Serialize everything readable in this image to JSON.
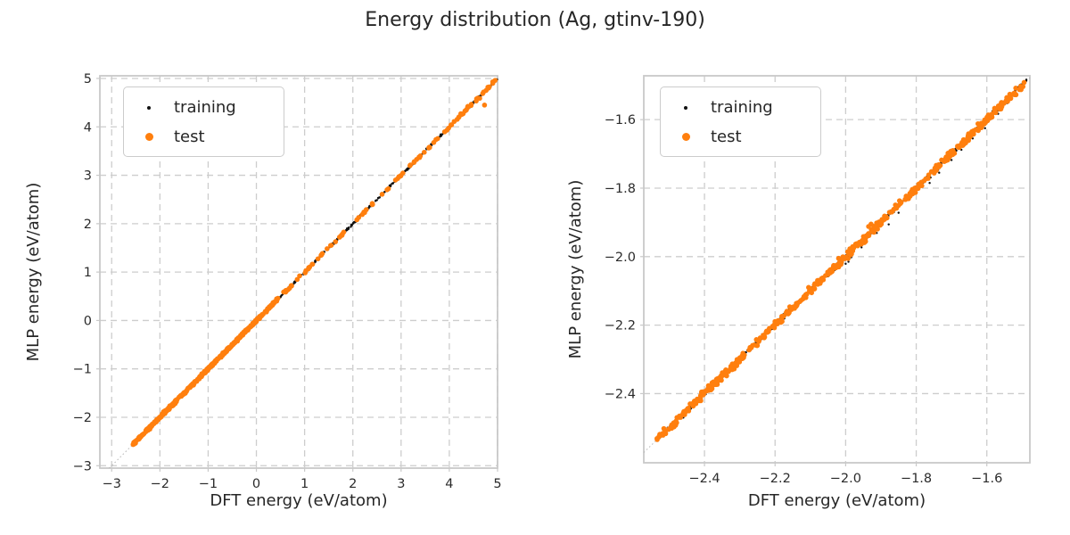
{
  "figure": {
    "title": "Energy distribution (Ag, gtinv-190)",
    "background_color": "#ffffff",
    "text_color": "#262626",
    "grid_color": "#cdcdcd",
    "spine_color": "#c9c9c9"
  },
  "legend": {
    "position": "upper left",
    "items": [
      {
        "label": "training",
        "marker": "small-black-dot",
        "color": "#111111"
      },
      {
        "label": "test",
        "marker": "orange-dot",
        "color": "#ff7f0e"
      }
    ]
  },
  "chart_data": [
    {
      "id": "left",
      "type": "scatter",
      "xlabel": "DFT energy (eV/atom)",
      "ylabel": "MLP energy (eV/atom)",
      "xlim": [
        -3.245,
        5.0
      ],
      "ylim": [
        -3.05,
        5.055
      ],
      "grid": "dashed",
      "xticks": {
        "values": [
          -3,
          -2,
          -1,
          0,
          1,
          2,
          3,
          4,
          5
        ],
        "labels": [
          "−3",
          "−2",
          "−1",
          "0",
          "1",
          "2",
          "3",
          "4",
          "5"
        ]
      },
      "yticks": {
        "values": [
          -3,
          -2,
          -1,
          0,
          1,
          2,
          3,
          4,
          5
        ],
        "labels": [
          "−3",
          "−2",
          "−1",
          "0",
          "1",
          "2",
          "3",
          "4",
          "5"
        ]
      },
      "ref_line": {
        "equation": "y = x",
        "v0": -3.05,
        "v1": 5.0,
        "style": "dotted",
        "color": "#b5b5b5"
      },
      "series": [
        {
          "name": "training",
          "color": "#111111",
          "marker_radius": 1.2,
          "bands": [
            {
              "x0": -2.56,
              "x1": 4.96,
              "n": 650,
              "noise": 0.012,
              "seed": 101
            }
          ],
          "points": [
            [
              4.97,
              4.96
            ],
            [
              4.99,
              4.98
            ],
            [
              4.9,
              4.91
            ],
            [
              4.84,
              4.85
            ],
            [
              4.78,
              4.77
            ],
            [
              4.7,
              4.71
            ],
            [
              4.6,
              4.61
            ],
            [
              4.5,
              4.49
            ]
          ]
        },
        {
          "name": "test",
          "color": "#ff7f0e",
          "marker_radius": 2.8,
          "bands": [
            {
              "x0": -2.56,
              "x1": 0.45,
              "n": 420,
              "noise": 0.013,
              "seed": 201
            },
            {
              "x0": 0.45,
              "x1": 4.93,
              "n": 95,
              "noise": 0.012,
              "seed": 202
            }
          ],
          "points": [
            [
              4.73,
              4.45
            ],
            [
              4.63,
              4.59
            ],
            [
              4.9,
              4.93
            ],
            [
              4.95,
              4.96
            ],
            [
              4.8,
              4.82
            ],
            [
              4.45,
              4.44
            ],
            [
              3.95,
              3.93
            ]
          ]
        }
      ]
    },
    {
      "id": "right",
      "type": "scatter",
      "xlabel": "DFT energy (eV/atom)",
      "ylabel": "MLP energy (eV/atom)",
      "xlim": [
        -2.572,
        -1.478
      ],
      "ylim": [
        -2.602,
        -1.472
      ],
      "grid": "dashed",
      "xticks": {
        "values": [
          -2.4,
          -2.2,
          -2.0,
          -1.8,
          -1.6
        ],
        "labels": [
          "−2.4",
          "−2.2",
          "−2.0",
          "−1.8",
          "−1.6"
        ]
      },
      "yticks": {
        "values": [
          -1.6,
          -1.8,
          -2.0,
          -2.2,
          -2.4
        ],
        "labels": [
          "−1.6",
          "−1.8",
          "−2.0",
          "−2.2",
          "−2.4"
        ]
      },
      "ref_line": {
        "equation": "y = x",
        "v0": -2.572,
        "v1": -1.478,
        "style": "dotted",
        "color": "#b5b5b5"
      },
      "series": [
        {
          "name": "training",
          "color": "#111111",
          "marker_radius": 1.2,
          "bands": [
            {
              "x0": -2.535,
              "x1": -1.487,
              "n": 700,
              "noise": 0.0035,
              "seed": 301
            }
          ],
          "points": [
            [
              -2.0,
              -2.021
            ],
            [
              -1.992,
              -2.015
            ],
            [
              -1.984,
              -2.002
            ],
            [
              -1.955,
              -1.973
            ],
            [
              -1.912,
              -1.931
            ],
            [
              -1.878,
              -1.906
            ],
            [
              -1.85,
              -1.872
            ],
            [
              -1.8,
              -1.815
            ],
            [
              -1.762,
              -1.785
            ],
            [
              -1.735,
              -1.755
            ],
            [
              -1.7,
              -1.718
            ],
            [
              -1.672,
              -1.688
            ],
            [
              -1.64,
              -1.655
            ],
            [
              -1.605,
              -1.625
            ],
            [
              -1.568,
              -1.583
            ],
            [
              -1.542,
              -1.552
            ],
            [
              -1.52,
              -1.528
            ],
            [
              -1.5,
              -1.506
            ]
          ]
        },
        {
          "name": "test",
          "color": "#ff7f0e",
          "marker_radius": 2.8,
          "bands": [
            {
              "x0": -2.535,
              "x1": -1.49,
              "n": 520,
              "noise": 0.005,
              "seed": 401
            }
          ],
          "points": [
            [
              -1.928,
              -1.905
            ],
            [
              -1.935,
              -1.912
            ],
            [
              -2.105,
              -2.09
            ],
            [
              -2.02,
              -2.005
            ],
            [
              -1.71,
              -1.698
            ],
            [
              -1.625,
              -1.612
            ],
            [
              -1.578,
              -1.567
            ],
            [
              -1.518,
              -1.508
            ]
          ]
        }
      ]
    }
  ]
}
